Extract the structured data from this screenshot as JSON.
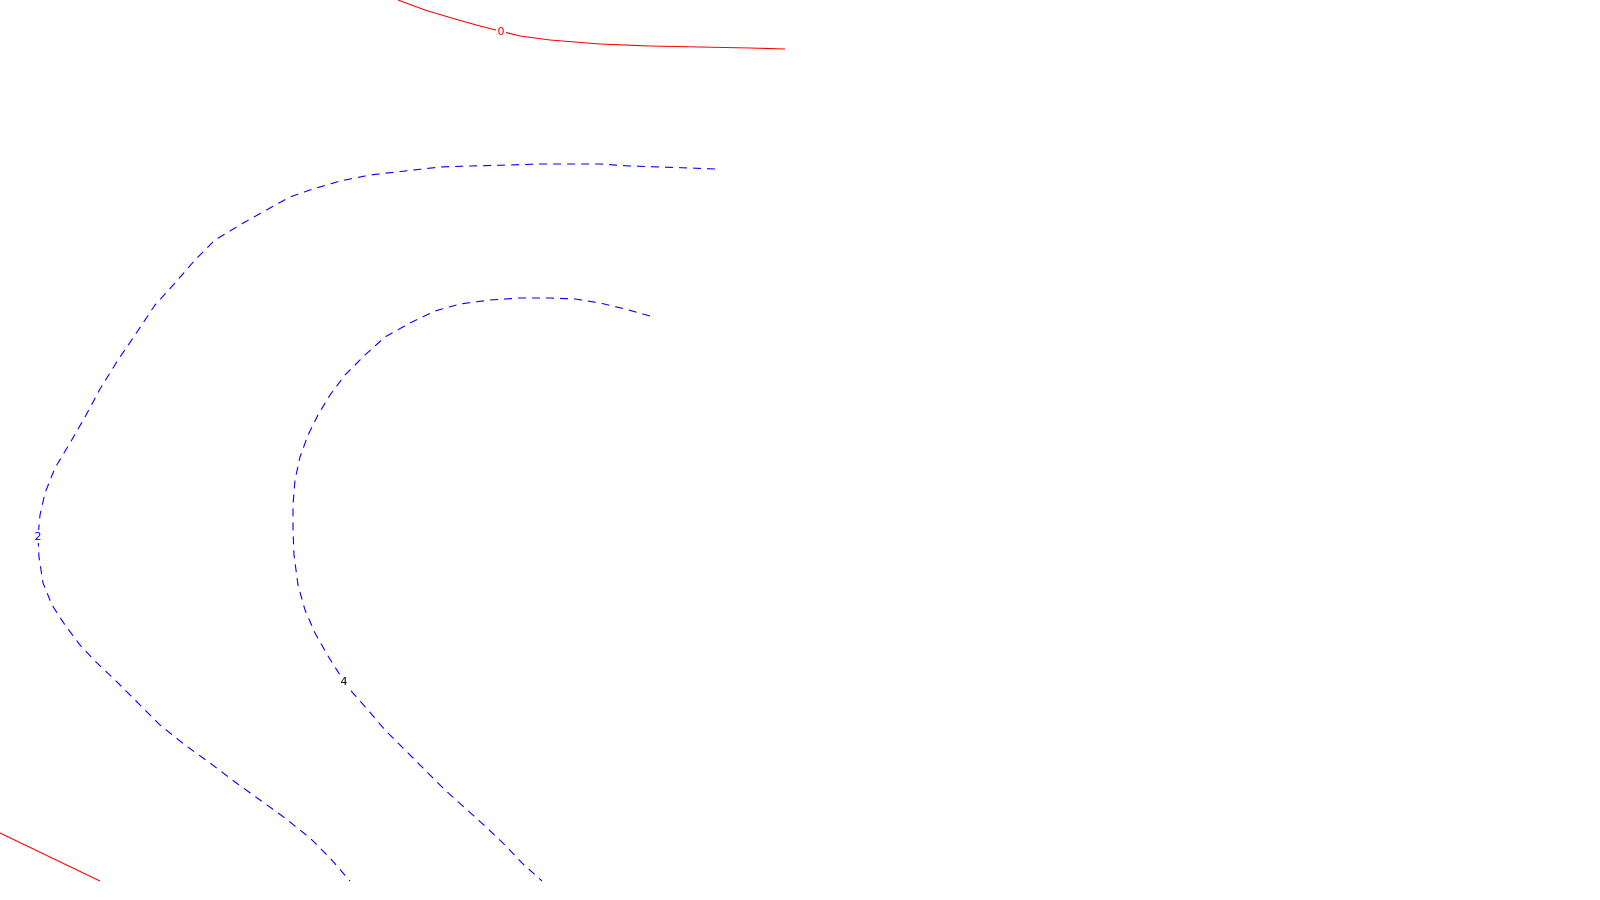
{
  "chart_data": {
    "type": "contour",
    "background": "#ffffff",
    "title": "",
    "xlabel": "",
    "ylabel": "",
    "grid": false,
    "legend": "none",
    "levels": [
      {
        "level": 0,
        "label": "0",
        "color": "#ff0000",
        "dashed": false,
        "segments": [
          [
            [
              398,
              0
            ],
            [
              425,
              10
            ],
            [
              455,
              19
            ],
            [
              480,
              26
            ],
            [
              500,
              31
            ],
            [
              520,
              36
            ],
            [
              550,
              40
            ],
            [
              600,
              44
            ],
            [
              650,
              46
            ],
            [
              700,
              47
            ],
            [
              750,
              48
            ],
            [
              785,
              49
            ]
          ],
          [
            [
              0,
              833
            ],
            [
              25,
              845
            ],
            [
              50,
              857
            ],
            [
              75,
              869
            ],
            [
              100,
              881
            ]
          ]
        ]
      },
      {
        "level": 2,
        "label": "2",
        "color": "#0000ff",
        "dashed": true,
        "segments": [
          [
            [
              715,
              169
            ],
            [
              690,
              168
            ],
            [
              660,
              167
            ],
            [
              630,
              166
            ],
            [
              600,
              164
            ],
            [
              570,
              164
            ],
            [
              540,
              164
            ],
            [
              510,
              165
            ],
            [
              470,
              166
            ],
            [
              440,
              167
            ],
            [
              405,
              171
            ],
            [
              370,
              175
            ],
            [
              340,
              181
            ],
            [
              310,
              190
            ],
            [
              290,
              197
            ],
            [
              270,
              208
            ],
            [
              245,
              222
            ],
            [
              215,
              240
            ],
            [
              195,
              260
            ],
            [
              175,
              283
            ],
            [
              155,
              305
            ],
            [
              135,
              335
            ],
            [
              118,
              360
            ],
            [
              100,
              389
            ],
            [
              85,
              417
            ],
            [
              70,
              443
            ],
            [
              55,
              468
            ],
            [
              45,
              493
            ],
            [
              40,
              515
            ],
            [
              38,
              537
            ],
            [
              39,
              557
            ],
            [
              43,
              583
            ],
            [
              52,
              605
            ],
            [
              65,
              625
            ],
            [
              80,
              645
            ],
            [
              95,
              661
            ],
            [
              115,
              680
            ],
            [
              135,
              700
            ],
            [
              160,
              725
            ],
            [
              185,
              745
            ],
            [
              210,
              763
            ],
            [
              235,
              782
            ],
            [
              260,
              800
            ],
            [
              285,
              818
            ],
            [
              310,
              838
            ],
            [
              330,
              858
            ],
            [
              350,
              881
            ]
          ]
        ]
      },
      {
        "level": 4,
        "label": "4",
        "color": "#0000ff",
        "dashed": true,
        "segments": [
          [
            [
              650,
              316
            ],
            [
              625,
              309
            ],
            [
              600,
              303
            ],
            [
              575,
              299
            ],
            [
              550,
              298
            ],
            [
              520,
              298
            ],
            [
              490,
              300
            ],
            [
              460,
              304
            ],
            [
              435,
              311
            ],
            [
              410,
              323
            ],
            [
              385,
              337
            ],
            [
              365,
              355
            ],
            [
              345,
              375
            ],
            [
              330,
              395
            ],
            [
              318,
              415
            ],
            [
              308,
              435
            ],
            [
              300,
              457
            ],
            [
              295,
              480
            ],
            [
              293,
              505
            ],
            [
              293,
              530
            ],
            [
              294,
              555
            ],
            [
              298,
              585
            ],
            [
              305,
              610
            ],
            [
              315,
              633
            ],
            [
              328,
              656
            ],
            [
              340,
              675
            ],
            [
              352,
              692
            ],
            [
              368,
              710
            ],
            [
              385,
              730
            ],
            [
              405,
              750
            ],
            [
              425,
              770
            ],
            [
              445,
              790
            ],
            [
              465,
              808
            ],
            [
              485,
              826
            ],
            [
              505,
              845
            ],
            [
              522,
              863
            ],
            [
              542,
              881
            ]
          ]
        ]
      }
    ],
    "labels": [
      {
        "text": "0",
        "level": 0,
        "color": "#ff0000",
        "at": [
          501,
          32
        ]
      },
      {
        "text": "2",
        "level": 2,
        "color": "#0000ff",
        "at": [
          38,
          537
        ]
      },
      {
        "text": "4",
        "level": 4,
        "color": "#000000",
        "at": [
          344,
          682
        ]
      }
    ]
  }
}
